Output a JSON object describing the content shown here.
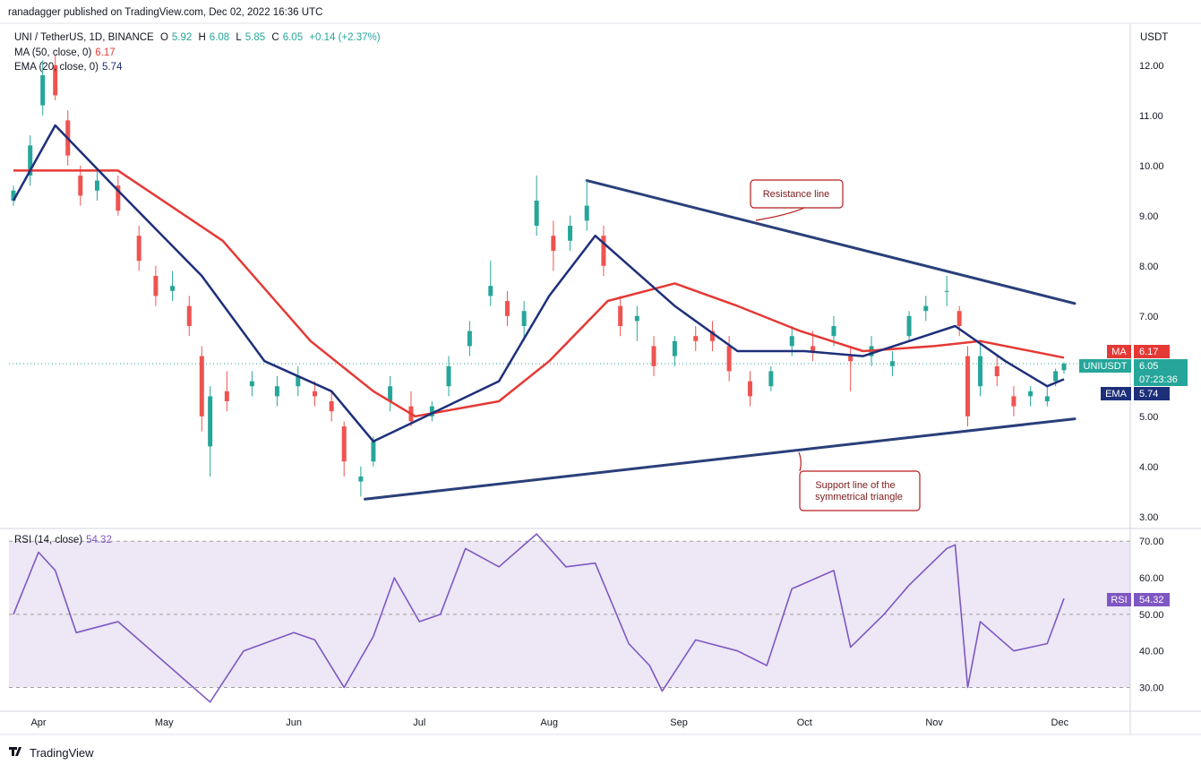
{
  "header": {
    "published_by": "ranadagger published on TradingView.com, Dec 02, 2022 16:36 UTC",
    "symbol_line": "UNI / TetherUS, 1D, BINANCE",
    "ohlc": {
      "o_label": "O",
      "o": "5.92",
      "h_label": "H",
      "h": "6.08",
      "l_label": "L",
      "l": "5.85",
      "c_label": "C",
      "c": "6.05",
      "change": "+0.14 (+2.37%)"
    },
    "ma_line": {
      "label": "MA (50, close, 0)",
      "value": "6.17"
    },
    "ema_line": {
      "label": "EMA (20, close, 0)",
      "value": "5.74"
    },
    "currency": "USDT",
    "rsi_line": {
      "label": "RSI (14, close)",
      "value": "54.32"
    }
  },
  "badges": {
    "ma": {
      "name": "MA",
      "value": "6.17"
    },
    "price": {
      "name": "UNIUSDT",
      "value": "6.05",
      "countdown": "07:23:36"
    },
    "ema": {
      "name": "EMA",
      "value": "5.74"
    },
    "rsi": {
      "name": "RSI",
      "value": "54.32"
    }
  },
  "annotations": {
    "resistance": "Resistance line",
    "support_1": "Support line of the",
    "support_2": "symmetrical triangle"
  },
  "footer": {
    "brand": "TradingView"
  },
  "colors": {
    "up": "#26a69a",
    "down": "#ef5350",
    "ma": "#e53935",
    "ema": "#1e2f7a",
    "trend": "#2a3f7a",
    "rsi": "#7e57c2",
    "rsi_band": "#ede7f6"
  },
  "chart_data": [
    {
      "type": "candlestick",
      "title": "UNI / TetherUS, 1D, BINANCE",
      "x_ticks": [
        "Apr",
        "May",
        "Jun",
        "Jul",
        "Aug",
        "Sep",
        "Oct",
        "Nov",
        "Dec"
      ],
      "y_ticks": [
        "3.00",
        "4.00",
        "5.00",
        "6.00",
        "7.00",
        "8.00",
        "9.00",
        "10.00",
        "11.00",
        "12.00"
      ],
      "ylim": [
        2.8,
        12.8
      ],
      "x_range": [
        "2022-03-26",
        "2022-12-02"
      ],
      "candles_approx": [
        [
          "2022-03-26",
          9.3,
          9.6,
          9.2,
          9.5
        ],
        [
          "2022-03-30",
          9.8,
          10.6,
          9.6,
          10.4
        ],
        [
          "2022-04-02",
          11.2,
          12.1,
          11.0,
          11.8
        ],
        [
          "2022-04-05",
          12.0,
          12.2,
          11.3,
          11.4
        ],
        [
          "2022-04-08",
          10.9,
          11.1,
          10.0,
          10.2
        ],
        [
          "2022-04-11",
          9.8,
          10.0,
          9.2,
          9.4
        ],
        [
          "2022-04-15",
          9.5,
          9.9,
          9.3,
          9.7
        ],
        [
          "2022-04-20",
          9.6,
          9.8,
          9.0,
          9.1
        ],
        [
          "2022-04-25",
          8.6,
          8.8,
          7.9,
          8.1
        ],
        [
          "2022-04-29",
          7.8,
          8.0,
          7.2,
          7.4
        ],
        [
          "2022-05-03",
          7.5,
          7.9,
          7.3,
          7.6
        ],
        [
          "2022-05-07",
          7.2,
          7.4,
          6.6,
          6.8
        ],
        [
          "2022-05-10",
          6.2,
          6.4,
          4.7,
          5.0
        ],
        [
          "2022-05-12",
          4.4,
          5.6,
          3.8,
          5.4
        ],
        [
          "2022-05-16",
          5.5,
          5.9,
          5.1,
          5.3
        ],
        [
          "2022-05-22",
          5.6,
          5.9,
          5.4,
          5.7
        ],
        [
          "2022-05-28",
          5.4,
          5.8,
          5.2,
          5.6
        ],
        [
          "2022-06-02",
          5.6,
          6.0,
          5.4,
          5.8
        ],
        [
          "2022-06-06",
          5.5,
          5.7,
          5.2,
          5.4
        ],
        [
          "2022-06-10",
          5.3,
          5.5,
          4.9,
          5.1
        ],
        [
          "2022-06-13",
          4.8,
          4.9,
          3.8,
          4.1
        ],
        [
          "2022-06-17",
          3.7,
          4.0,
          3.4,
          3.8
        ],
        [
          "2022-06-20",
          4.1,
          4.6,
          4.0,
          4.5
        ],
        [
          "2022-06-24",
          5.3,
          5.8,
          5.1,
          5.6
        ],
        [
          "2022-06-29",
          5.2,
          5.5,
          4.8,
          4.9
        ],
        [
          "2022-07-04",
          5.0,
          5.3,
          4.9,
          5.2
        ],
        [
          "2022-07-08",
          5.6,
          6.2,
          5.4,
          6.0
        ],
        [
          "2022-07-13",
          6.4,
          6.9,
          6.2,
          6.7
        ],
        [
          "2022-07-18",
          7.4,
          8.1,
          7.2,
          7.6
        ],
        [
          "2022-07-22",
          7.3,
          7.5,
          6.8,
          7.0
        ],
        [
          "2022-07-26",
          6.8,
          7.3,
          6.5,
          7.1
        ],
        [
          "2022-07-29",
          8.8,
          9.8,
          8.6,
          9.3
        ],
        [
          "2022-08-02",
          8.6,
          8.9,
          7.9,
          8.3
        ],
        [
          "2022-08-06",
          8.5,
          9.0,
          8.3,
          8.8
        ],
        [
          "2022-08-10",
          8.9,
          9.7,
          8.7,
          9.2
        ],
        [
          "2022-08-14",
          8.6,
          8.8,
          7.8,
          8.0
        ],
        [
          "2022-08-18",
          7.2,
          7.4,
          6.6,
          6.8
        ],
        [
          "2022-08-22",
          6.9,
          7.2,
          6.5,
          7.0
        ],
        [
          "2022-08-26",
          6.4,
          6.6,
          5.8,
          6.0
        ],
        [
          "2022-08-31",
          6.2,
          6.6,
          6.0,
          6.5
        ],
        [
          "2022-09-05",
          6.6,
          6.8,
          6.3,
          6.5
        ],
        [
          "2022-09-09",
          6.7,
          6.9,
          6.3,
          6.5
        ],
        [
          "2022-09-13",
          6.4,
          6.6,
          5.7,
          5.9
        ],
        [
          "2022-09-18",
          5.7,
          5.9,
          5.2,
          5.4
        ],
        [
          "2022-09-23",
          5.6,
          6.0,
          5.5,
          5.9
        ],
        [
          "2022-09-28",
          6.4,
          6.8,
          6.2,
          6.6
        ],
        [
          "2022-10-03",
          6.4,
          6.7,
          6.1,
          6.3
        ],
        [
          "2022-10-08",
          6.6,
          7.0,
          6.4,
          6.8
        ],
        [
          "2022-10-12",
          6.2,
          6.4,
          5.5,
          6.1
        ],
        [
          "2022-10-17",
          6.2,
          6.6,
          6.0,
          6.4
        ],
        [
          "2022-10-22",
          6.0,
          6.3,
          5.8,
          6.1
        ],
        [
          "2022-10-26",
          6.6,
          7.1,
          6.5,
          7.0
        ],
        [
          "2022-10-30",
          7.1,
          7.4,
          6.9,
          7.2
        ],
        [
          "2022-11-04",
          7.5,
          7.8,
          7.2,
          7.5
        ],
        [
          "2022-11-07",
          7.1,
          7.2,
          6.6,
          6.8
        ],
        [
          "2022-11-09",
          6.2,
          6.4,
          4.8,
          5.0
        ],
        [
          "2022-11-12",
          5.6,
          6.5,
          5.4,
          6.2
        ],
        [
          "2022-11-16",
          6.0,
          6.2,
          5.6,
          5.8
        ],
        [
          "2022-11-20",
          5.4,
          5.6,
          5.0,
          5.2
        ],
        [
          "2022-11-24",
          5.4,
          5.6,
          5.2,
          5.5
        ],
        [
          "2022-11-28",
          5.3,
          5.6,
          5.2,
          5.4
        ],
        [
          "2022-11-30",
          5.7,
          5.95,
          5.6,
          5.9
        ],
        [
          "2022-12-02",
          5.92,
          6.08,
          5.85,
          6.05
        ]
      ],
      "ma50_approx": [
        [
          "2022-03-26",
          9.9
        ],
        [
          "2022-04-20",
          9.9
        ],
        [
          "2022-05-15",
          8.5
        ],
        [
          "2022-06-05",
          6.5
        ],
        [
          "2022-06-20",
          5.5
        ],
        [
          "2022-06-30",
          5.0
        ],
        [
          "2022-07-20",
          5.3
        ],
        [
          "2022-08-01",
          6.1
        ],
        [
          "2022-08-15",
          7.3
        ],
        [
          "2022-08-31",
          7.65
        ],
        [
          "2022-09-15",
          7.2
        ],
        [
          "2022-09-30",
          6.7
        ],
        [
          "2022-10-15",
          6.3
        ],
        [
          "2022-11-01",
          6.4
        ],
        [
          "2022-11-12",
          6.5
        ],
        [
          "2022-12-02",
          6.17
        ]
      ],
      "ema20_approx": [
        [
          "2022-03-26",
          9.3
        ],
        [
          "2022-04-05",
          10.8
        ],
        [
          "2022-04-20",
          9.5
        ],
        [
          "2022-05-10",
          7.8
        ],
        [
          "2022-05-25",
          6.1
        ],
        [
          "2022-06-10",
          5.5
        ],
        [
          "2022-06-20",
          4.5
        ],
        [
          "2022-07-05",
          5.1
        ],
        [
          "2022-07-20",
          5.7
        ],
        [
          "2022-08-01",
          7.4
        ],
        [
          "2022-08-12",
          8.6
        ],
        [
          "2022-08-31",
          7.2
        ],
        [
          "2022-09-15",
          6.3
        ],
        [
          "2022-10-01",
          6.3
        ],
        [
          "2022-10-15",
          6.2
        ],
        [
          "2022-11-06",
          6.8
        ],
        [
          "2022-11-18",
          6.1
        ],
        [
          "2022-11-28",
          5.6
        ],
        [
          "2022-12-02",
          5.74
        ]
      ],
      "trendlines": {
        "resistance": [
          [
            "2022-08-10",
            9.7
          ],
          [
            "2022-12-02",
            7.25
          ]
        ],
        "support": [
          [
            "2022-06-18",
            3.35
          ],
          [
            "2022-12-02",
            4.95
          ]
        ]
      }
    },
    {
      "type": "line",
      "title": "RSI (14, close)",
      "y_ticks": [
        "30.00",
        "40.00",
        "50.00",
        "60.00",
        "70.00"
      ],
      "ylim": [
        24,
        73
      ],
      "bands": [
        30,
        50,
        70
      ],
      "values_approx": [
        [
          "2022-03-26",
          50
        ],
        [
          "2022-04-01",
          67
        ],
        [
          "2022-04-05",
          62
        ],
        [
          "2022-04-10",
          45
        ],
        [
          "2022-04-20",
          48
        ],
        [
          "2022-05-01",
          37
        ],
        [
          "2022-05-10",
          28
        ],
        [
          "2022-05-12",
          26
        ],
        [
          "2022-05-20",
          40
        ],
        [
          "2022-06-01",
          45
        ],
        [
          "2022-06-06",
          43
        ],
        [
          "2022-06-13",
          30
        ],
        [
          "2022-06-20",
          44
        ],
        [
          "2022-06-25",
          60
        ],
        [
          "2022-07-01",
          48
        ],
        [
          "2022-07-06",
          50
        ],
        [
          "2022-07-12",
          68
        ],
        [
          "2022-07-20",
          63
        ],
        [
          "2022-07-29",
          72
        ],
        [
          "2022-08-05",
          63
        ],
        [
          "2022-08-12",
          64
        ],
        [
          "2022-08-20",
          42
        ],
        [
          "2022-08-25",
          36
        ],
        [
          "2022-08-28",
          29
        ],
        [
          "2022-09-05",
          43
        ],
        [
          "2022-09-15",
          40
        ],
        [
          "2022-09-22",
          36
        ],
        [
          "2022-09-28",
          57
        ],
        [
          "2022-10-08",
          62
        ],
        [
          "2022-10-12",
          41
        ],
        [
          "2022-10-20",
          50
        ],
        [
          "2022-10-26",
          58
        ],
        [
          "2022-11-04",
          68
        ],
        [
          "2022-11-06",
          69
        ],
        [
          "2022-11-09",
          30
        ],
        [
          "2022-11-12",
          48
        ],
        [
          "2022-11-20",
          40
        ],
        [
          "2022-11-28",
          42
        ],
        [
          "2022-12-02",
          54.32
        ]
      ]
    }
  ]
}
